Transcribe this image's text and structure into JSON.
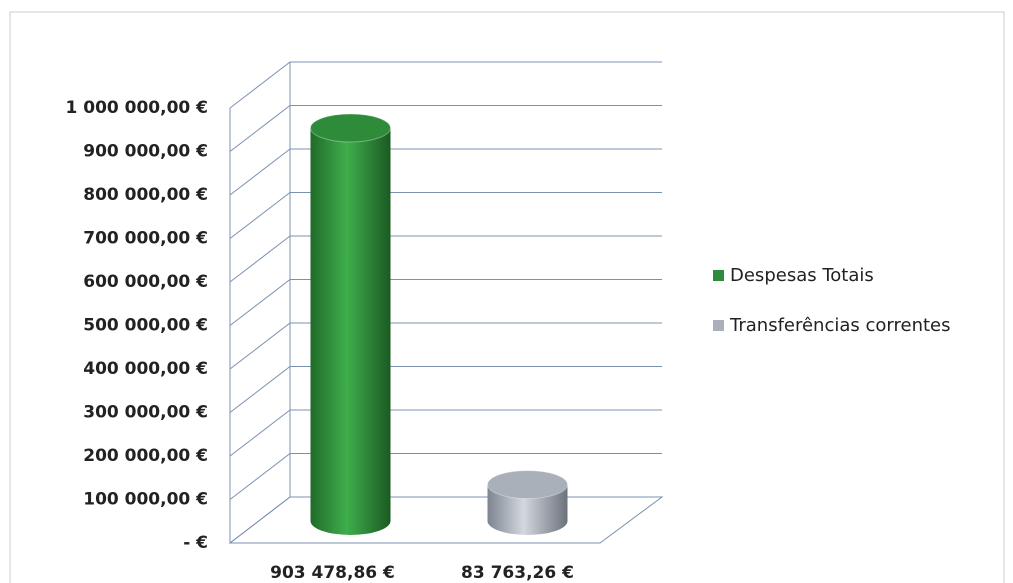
{
  "chart_data": {
    "type": "bar3d",
    "categories": [
      "903 478,86 €",
      "83 763,26 €"
    ],
    "series": [
      {
        "name": "Despesas Totais",
        "color": "#2e8b3a",
        "values": [
          903478.86,
          null
        ]
      },
      {
        "name": "Transferências correntes",
        "color": "#a9b0ba",
        "values": [
          null,
          83763.26
        ]
      }
    ],
    "ylim": [
      0,
      1000000
    ],
    "yticks": [
      {
        "value": 0,
        "label": "-  €"
      },
      {
        "value": 100000,
        "label": "100 000,00 €"
      },
      {
        "value": 200000,
        "label": "200 000,00 €"
      },
      {
        "value": 300000,
        "label": "300 000,00 €"
      },
      {
        "value": 400000,
        "label": "400 000,00 €"
      },
      {
        "value": 500000,
        "label": "500 000,00 €"
      },
      {
        "value": 600000,
        "label": "600 000,00 €"
      },
      {
        "value": 700000,
        "label": "700 000,00 €"
      },
      {
        "value": 800000,
        "label": "800 000,00 €"
      },
      {
        "value": 900000,
        "label": "900 000,00 €"
      },
      {
        "value": 1000000,
        "label": "1 000 000,00 €"
      }
    ],
    "grid": true
  }
}
